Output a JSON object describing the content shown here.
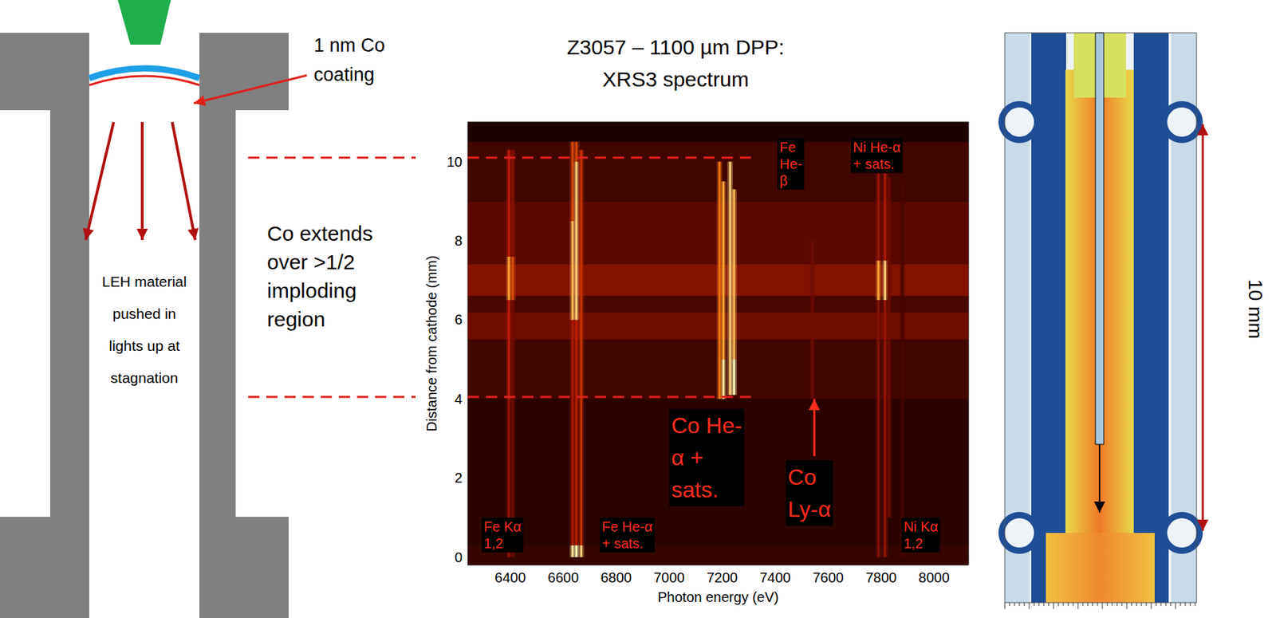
{
  "chart_data": {
    "type": "heatmap",
    "title": "Z3057 – 1100 µm DPP:",
    "subtitle": "XRS3 spectrum",
    "x_label": "Photon energy (eV)",
    "y_label": "Distance from cathode (mm)",
    "xlim": [
      6240,
      8130
    ],
    "xticks": [
      6400,
      6600,
      6800,
      7000,
      7200,
      7400,
      7600,
      7800,
      8000
    ],
    "ylim": [
      -0.2,
      11
    ],
    "yticks": [
      0,
      2,
      4,
      6,
      8,
      10
    ],
    "grid": false,
    "intensity_range": [
      0,
      1
    ],
    "bands": [
      {
        "y": [
          -0.2,
          0.3
        ],
        "intensity": 0.15
      },
      {
        "y": [
          0.3,
          4.0
        ],
        "intensity": 0.12
      },
      {
        "y": [
          4.0,
          5.5
        ],
        "intensity": 0.18
      },
      {
        "y": [
          5.5,
          6.2
        ],
        "intensity": 0.3
      },
      {
        "y": [
          6.2,
          6.6
        ],
        "intensity": 0.2
      },
      {
        "y": [
          6.6,
          7.4
        ],
        "intensity": 0.35
      },
      {
        "y": [
          7.4,
          9.0
        ],
        "intensity": 0.25
      },
      {
        "y": [
          9.0,
          10.5
        ],
        "intensity": 0.18
      },
      {
        "y": [
          10.5,
          11
        ],
        "intensity": 0.08
      }
    ],
    "lines": [
      {
        "x": 6395,
        "segments": [
          [
            0,
            4,
            0.4
          ],
          [
            4,
            6.5,
            0.5
          ],
          [
            6.5,
            7.6,
            0.8
          ],
          [
            7.6,
            10.3,
            0.5
          ]
        ]
      },
      {
        "x": 6410,
        "segments": [
          [
            0,
            6.5,
            0.3
          ],
          [
            6.5,
            7.6,
            0.6
          ],
          [
            7.6,
            10.3,
            0.35
          ]
        ]
      },
      {
        "x": 6635,
        "segments": [
          [
            0,
            0.3,
            0.95
          ],
          [
            0.3,
            6,
            0.45
          ],
          [
            6,
            8.5,
            0.85
          ],
          [
            8.5,
            10.5,
            0.6
          ]
        ]
      },
      {
        "x": 6650,
        "segments": [
          [
            0,
            0.3,
            1
          ],
          [
            0.3,
            6,
            0.5
          ],
          [
            6,
            10,
            0.9
          ],
          [
            10,
            10.5,
            0.6
          ]
        ]
      },
      {
        "x": 6668,
        "segments": [
          [
            0,
            0.3,
            0.9
          ],
          [
            0.3,
            10.3,
            0.55
          ]
        ]
      },
      {
        "x": 7190,
        "segments": [
          [
            4,
            10,
            0.7
          ]
        ]
      },
      {
        "x": 7205,
        "segments": [
          [
            4,
            5,
            0.95
          ],
          [
            5,
            9.5,
            0.8
          ]
        ]
      },
      {
        "x": 7230,
        "segments": [
          [
            4.1,
            10,
            0.9
          ]
        ]
      },
      {
        "x": 7245,
        "segments": [
          [
            4.1,
            5,
            1
          ],
          [
            5,
            9.3,
            0.85
          ]
        ]
      },
      {
        "x": 7540,
        "segments": [
          [
            4,
            8,
            0.3
          ]
        ]
      },
      {
        "x": 7790,
        "segments": [
          [
            0,
            6.5,
            0.35
          ],
          [
            6.5,
            7.5,
            0.8
          ],
          [
            7.5,
            9.7,
            0.4
          ]
        ]
      },
      {
        "x": 7815,
        "segments": [
          [
            0,
            6.5,
            0.4
          ],
          [
            6.5,
            7.5,
            0.9
          ],
          [
            7.5,
            9.7,
            0.45
          ]
        ]
      },
      {
        "x": 7830,
        "segments": [
          [
            1,
            9.6,
            0.3
          ]
        ]
      },
      {
        "x": 7880,
        "segments": [
          [
            0,
            9.5,
            0.2
          ]
        ]
      }
    ],
    "labels": [
      {
        "text": "Fe\nHe-\nβ",
        "x": 7409,
        "y": 10.6
      },
      {
        "text": "Ni He-α\n+ sats.",
        "x": 7686,
        "y": 10.6
      },
      {
        "text": "Fe Kα\n1,2",
        "x": 6292,
        "y": 1.0
      },
      {
        "text": "Fe He-α\n+ sats.",
        "x": 6738,
        "y": 1.0
      },
      {
        "text": "Ni Kα\n1,2",
        "x": 7877,
        "y": 1.0
      }
    ],
    "callouts": [
      {
        "text": "Co He-\nα +\nsats.",
        "x": 7000,
        "y": 3.75
      },
      {
        "text": "Co\nLy-α",
        "x": 7440,
        "y": 2.45
      }
    ],
    "arrows": [
      {
        "x": 7548,
        "y": [
          2.55,
          4.0
        ]
      }
    ],
    "guides": [
      {
        "y": 10.1,
        "x_end": 7330
      },
      {
        "y": 4.05,
        "x_end": 7330
      }
    ]
  },
  "diagram": {
    "left": {
      "coating": "1 nm Co\ncoating",
      "leh": "LEH material\npushed in\nlights up at\nstagnation",
      "extent": "Co extends\nover >1/2\nimploding\nregion"
    },
    "right": {
      "scale_label": "10 mm"
    }
  }
}
